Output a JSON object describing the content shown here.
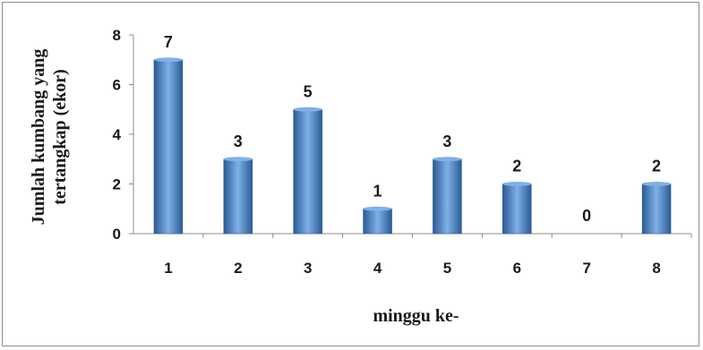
{
  "chart_data": {
    "type": "bar",
    "title": "",
    "xlabel": "minggu ke-",
    "ylabel_lines": [
      "Jumlah kumbang yang",
      "tertangkap (ekor)"
    ],
    "categories": [
      "1",
      "2",
      "3",
      "4",
      "5",
      "6",
      "7",
      "8"
    ],
    "values": [
      7,
      3,
      5,
      1,
      3,
      2,
      0,
      2
    ],
    "data_labels": [
      "7",
      "3",
      "5",
      "1",
      "3",
      "2",
      "0",
      "2"
    ],
    "y_ticks": [
      "0",
      "2",
      "4",
      "6",
      "8"
    ],
    "ylim": [
      0,
      8
    ],
    "grid": false,
    "legend": "none",
    "bar_color": "#4a7fc1",
    "bar_color_light": "#7fb0e6",
    "bar_color_dark": "#2b5a96"
  }
}
